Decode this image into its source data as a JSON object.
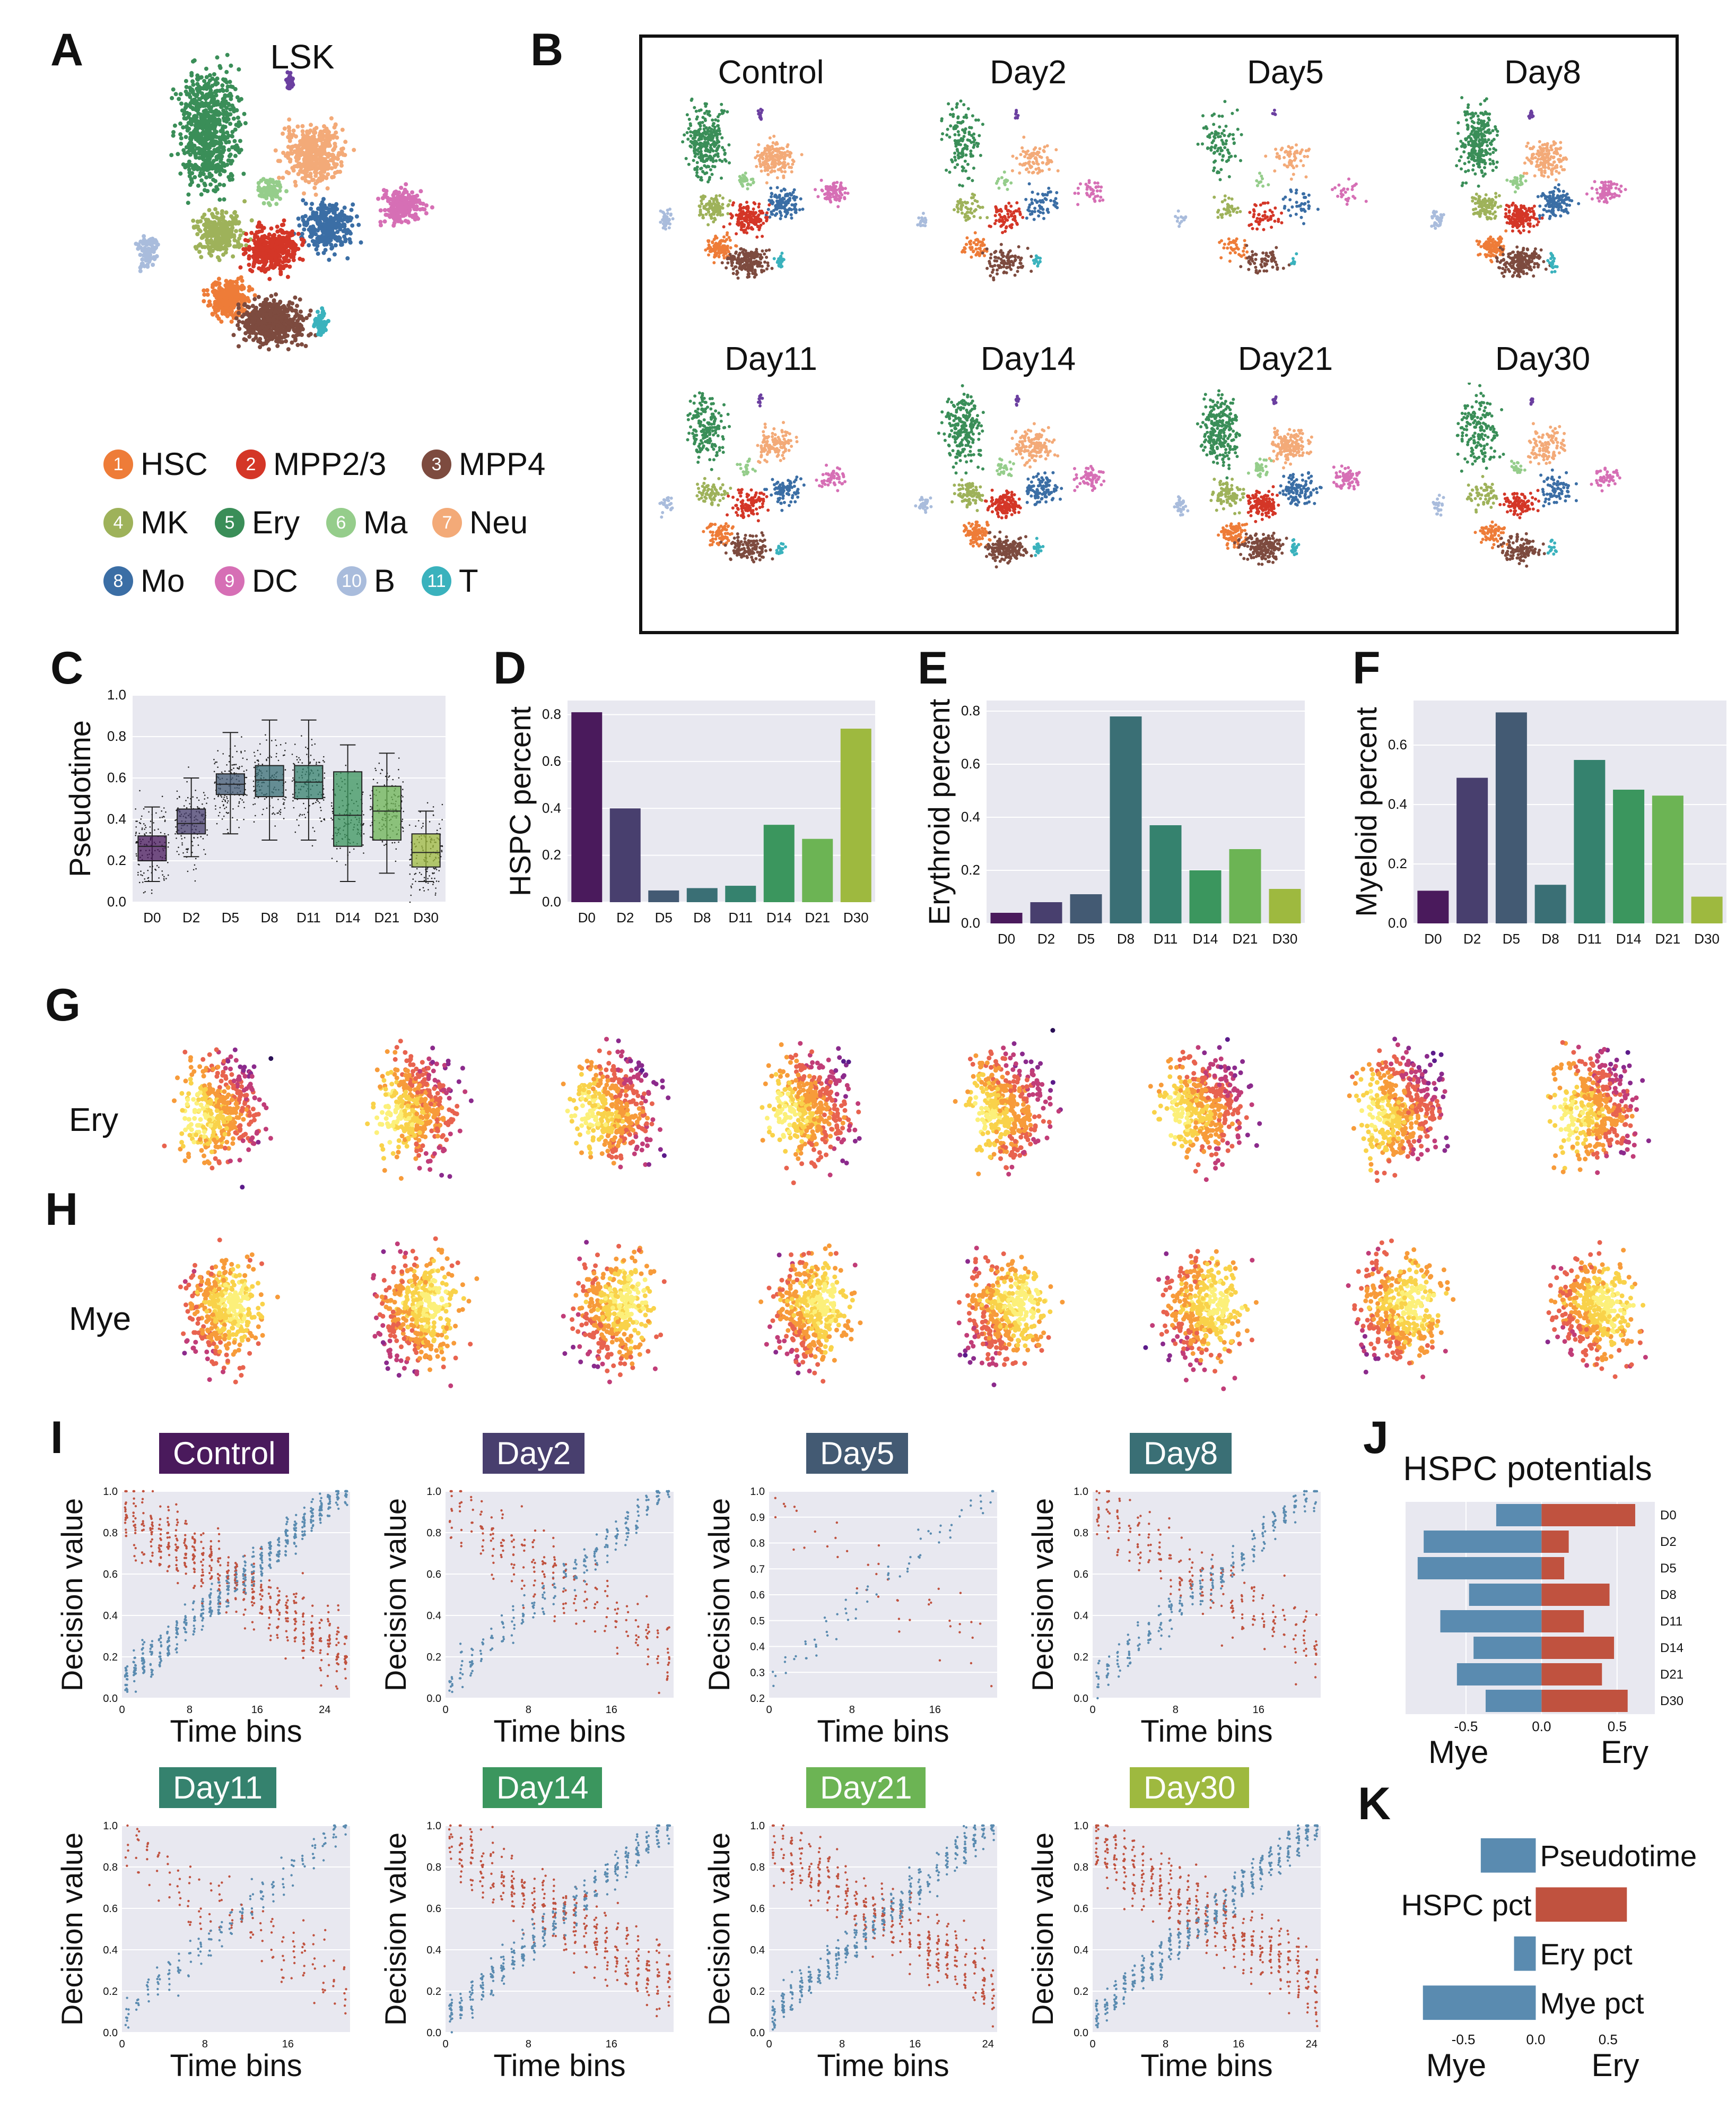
{
  "panel_letters": {
    "A": "A",
    "B": "B",
    "C": "C",
    "D": "D",
    "E": "E",
    "F": "F",
    "G": "G",
    "H": "H",
    "I": "I",
    "J": "J",
    "K": "K"
  },
  "colors": {
    "HSC": "#ee7c38",
    "MPP23": "#d43627",
    "MPP4": "#7d4b3f",
    "MK": "#9eb25a",
    "Ery": "#3a8e58",
    "Ma": "#95cd8b",
    "Neu": "#f3aa78",
    "Mo": "#3b6ea5",
    "DC": "#d66fb5",
    "B": "#a9bcdc",
    "T": "#3ab2bd",
    "blue": "#5a8bb0",
    "red": "#c0523f",
    "plot_bg": "#e8e8f0",
    "day_colors": [
      "#4a1a5c",
      "#483f6e",
      "#435a73",
      "#3a6f75",
      "#35826e",
      "#3b965e",
      "#6cb454",
      "#9eb93f"
    ]
  },
  "panelA": {
    "title": "LSK",
    "legend": [
      {
        "num": "1",
        "label": "HSC",
        "key": "HSC"
      },
      {
        "num": "2",
        "label": "MPP2/3",
        "key": "MPP23"
      },
      {
        "num": "3",
        "label": "MPP4",
        "key": "MPP4"
      },
      {
        "num": "4",
        "label": "MK",
        "key": "MK"
      },
      {
        "num": "5",
        "label": "Ery",
        "key": "Ery"
      },
      {
        "num": "6",
        "label": "Ma",
        "key": "Ma"
      },
      {
        "num": "7",
        "label": "Neu",
        "key": "Neu"
      },
      {
        "num": "8",
        "label": "Mo",
        "key": "Mo"
      },
      {
        "num": "9",
        "label": "DC",
        "key": "DC"
      },
      {
        "num": "10",
        "label": "B",
        "key": "B"
      },
      {
        "num": "11",
        "label": "T",
        "key": "T"
      }
    ]
  },
  "panelB": {
    "titles": [
      "Control",
      "Day2",
      "Day5",
      "Day8",
      "Day11",
      "Day14",
      "Day21",
      "Day30"
    ]
  },
  "panelG": {
    "label": "Ery"
  },
  "panelH": {
    "label": "Mye"
  },
  "chart_data": [
    {
      "id": "C",
      "type": "box",
      "ylabel": "Pseudotime",
      "categories": [
        "D0",
        "D2",
        "D5",
        "D8",
        "D11",
        "D14",
        "D21",
        "D30"
      ],
      "yticks": [
        "0.0",
        "0.2",
        "0.4",
        "0.6",
        "0.8",
        "1.0"
      ],
      "ylim": [
        0,
        1
      ],
      "boxes": [
        {
          "q1": 0.2,
          "median": 0.27,
          "q3": 0.32,
          "wlo": 0.1,
          "whi": 0.46
        },
        {
          "q1": 0.33,
          "median": 0.38,
          "q3": 0.45,
          "wlo": 0.22,
          "whi": 0.6
        },
        {
          "q1": 0.52,
          "median": 0.57,
          "q3": 0.62,
          "wlo": 0.33,
          "whi": 0.82
        },
        {
          "q1": 0.51,
          "median": 0.59,
          "q3": 0.66,
          "wlo": 0.3,
          "whi": 0.88
        },
        {
          "q1": 0.5,
          "median": 0.58,
          "q3": 0.66,
          "wlo": 0.3,
          "whi": 0.88
        },
        {
          "q1": 0.27,
          "median": 0.42,
          "q3": 0.63,
          "wlo": 0.1,
          "whi": 0.76
        },
        {
          "q1": 0.3,
          "median": 0.44,
          "q3": 0.56,
          "wlo": 0.14,
          "whi": 0.72
        },
        {
          "q1": 0.17,
          "median": 0.24,
          "q3": 0.33,
          "wlo": 0.1,
          "whi": 0.44
        }
      ]
    },
    {
      "id": "D",
      "type": "bar",
      "ylabel": "HSPC percent",
      "categories": [
        "D0",
        "D2",
        "D5",
        "D8",
        "D11",
        "D14",
        "D21",
        "D30"
      ],
      "values": [
        0.81,
        0.4,
        0.05,
        0.06,
        0.07,
        0.33,
        0.27,
        0.74
      ],
      "ylim": [
        0,
        0.86
      ],
      "yticks": [
        "0.0",
        "0.2",
        "0.4",
        "0.6",
        "0.8"
      ]
    },
    {
      "id": "E",
      "type": "bar",
      "ylabel": "Erythroid percent",
      "categories": [
        "D0",
        "D2",
        "D5",
        "D8",
        "D11",
        "D14",
        "D21",
        "D30"
      ],
      "values": [
        0.04,
        0.08,
        0.11,
        0.78,
        0.37,
        0.2,
        0.28,
        0.13
      ],
      "ylim": [
        0,
        0.84
      ],
      "yticks": [
        "0.0",
        "0.2",
        "0.4",
        "0.6",
        "0.8"
      ]
    },
    {
      "id": "F",
      "type": "bar",
      "ylabel": "Myeloid percent",
      "categories": [
        "D0",
        "D2",
        "D5",
        "D8",
        "D11",
        "D14",
        "D21",
        "D30"
      ],
      "values": [
        0.11,
        0.49,
        0.71,
        0.13,
        0.55,
        0.45,
        0.43,
        0.09
      ],
      "ylim": [
        0,
        0.75
      ],
      "yticks": [
        "0.0",
        "0.2",
        "0.4",
        "0.6"
      ]
    },
    {
      "id": "J",
      "type": "diverging-bar",
      "title": "HSPC potentials",
      "categories": [
        "D0",
        "D2",
        "D5",
        "D8",
        "D11",
        "D14",
        "D21",
        "D30"
      ],
      "mye": [
        -0.3,
        -0.78,
        -0.82,
        -0.48,
        -0.67,
        -0.45,
        -0.56,
        -0.37
      ],
      "ery": [
        0.62,
        0.18,
        0.15,
        0.45,
        0.28,
        0.48,
        0.4,
        0.57
      ],
      "xlim": [
        -0.9,
        0.75
      ],
      "xticks": [
        "-0.5",
        "0.0",
        "0.5"
      ],
      "xlabel_left": "Mye",
      "xlabel_right": "Ery"
    },
    {
      "id": "K",
      "type": "diverging-bar",
      "categories": [
        "Pseudotime",
        "HSPC pct",
        "Ery pct",
        "Mye pct"
      ],
      "values": [
        -0.38,
        0.63,
        -0.15,
        -0.78
      ],
      "xlim": [
        -0.9,
        0.75
      ],
      "xticks": [
        "-0.5",
        "0.0",
        "0.5"
      ],
      "xlabel_left": "Mye",
      "xlabel_right": "Ery"
    }
  ],
  "panelI": {
    "xlabel": "Time bins",
    "ylabel": "Decision value",
    "plots": [
      {
        "title": "Control",
        "xticks": [
          "0",
          "8",
          "16",
          "24"
        ],
        "yticks": [
          "0.0",
          "0.2",
          "0.4",
          "0.6",
          "0.8",
          "1.0"
        ],
        "nbins": 27
      },
      {
        "title": "Day2",
        "xticks": [
          "0",
          "8",
          "16"
        ],
        "yticks": [
          "0.0",
          "0.2",
          "0.4",
          "0.6",
          "0.8",
          "1.0"
        ],
        "nbins": 22
      },
      {
        "title": "Day5",
        "xticks": [
          "0",
          "8",
          "16"
        ],
        "yticks": [
          "0.2",
          "0.3",
          "0.4",
          "0.5",
          "0.6",
          "0.7",
          "0.8",
          "0.9",
          "1.0"
        ],
        "nbins": 22
      },
      {
        "title": "Day8",
        "xticks": [
          "0",
          "8",
          "16"
        ],
        "yticks": [
          "0.0",
          "0.2",
          "0.4",
          "0.6",
          "0.8",
          "1.0"
        ],
        "nbins": 22
      },
      {
        "title": "Day11",
        "xticks": [
          "0",
          "8",
          "16"
        ],
        "yticks": [
          "0.0",
          "0.2",
          "0.4",
          "0.6",
          "0.8",
          "1.0"
        ],
        "nbins": 22
      },
      {
        "title": "Day14",
        "xticks": [
          "0",
          "8",
          "16"
        ],
        "yticks": [
          "0.0",
          "0.2",
          "0.4",
          "0.6",
          "0.8",
          "1.0"
        ],
        "nbins": 22
      },
      {
        "title": "Day21",
        "xticks": [
          "0",
          "8",
          "16",
          "24"
        ],
        "yticks": [
          "0.0",
          "0.2",
          "0.4",
          "0.6",
          "0.8",
          "1.0"
        ],
        "nbins": 25
      },
      {
        "title": "Day30",
        "xticks": [
          "0",
          "8",
          "16",
          "24"
        ],
        "yticks": [
          "0.0",
          "0.2",
          "0.4",
          "0.6",
          "0.8",
          "1.0"
        ],
        "nbins": 25
      }
    ]
  }
}
